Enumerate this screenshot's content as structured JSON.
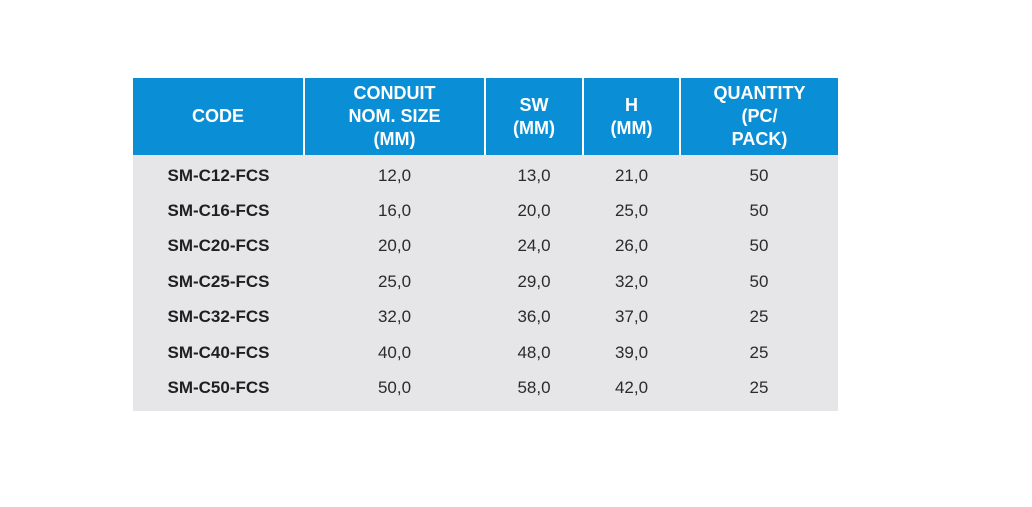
{
  "table": {
    "headers": [
      "CODE",
      "CONDUIT\nNOM. SIZE\n(MM)",
      "SW\n(MM)",
      "H\n(MM)",
      "QUANTITY\n(PC/\nPACK)"
    ],
    "rows": [
      [
        "SM-C12-FCS",
        "12,0",
        "13,0",
        "21,0",
        "50"
      ],
      [
        "SM-C16-FCS",
        "16,0",
        "20,0",
        "25,0",
        "50"
      ],
      [
        "SM-C20-FCS",
        "20,0",
        "24,0",
        "26,0",
        "50"
      ],
      [
        "SM-C25-FCS",
        "25,0",
        "29,0",
        "32,0",
        "50"
      ],
      [
        "SM-C32-FCS",
        "32,0",
        "36,0",
        "37,0",
        "25"
      ],
      [
        "SM-C40-FCS",
        "40,0",
        "48,0",
        "39,0",
        "25"
      ],
      [
        "SM-C50-FCS",
        "50,0",
        "58,0",
        "42,0",
        "25"
      ]
    ]
  },
  "colors": {
    "header_background": "#0a8fd6",
    "header_text": "#ffffff",
    "body_background": "#e6e6e8",
    "body_text": "#2b2b2b"
  }
}
